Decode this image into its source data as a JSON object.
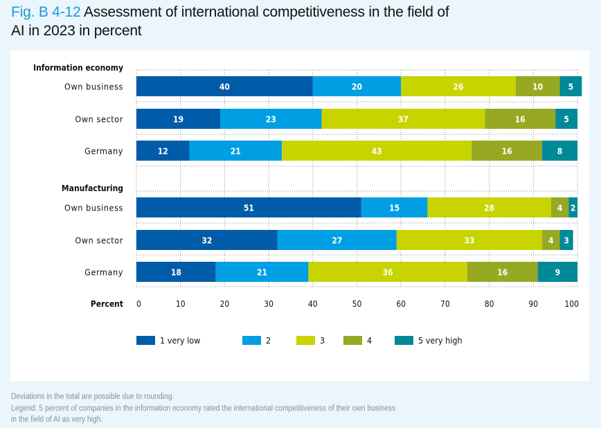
{
  "title": {
    "figure_label": "Fig. B 4-12",
    "line1": "Assessment of international competitiveness in the field of",
    "line2": "AI in 2023 in percent"
  },
  "notes": [
    "Deviations in the total are possible due to rounding.",
    "Legend: 5 percent of companies in the information economy rated the international competitiveness of their own business",
    "in the field of AI as very high."
  ],
  "colors": {
    "1 very low": "#005ba9",
    "2": "#009fe3",
    "3": "#c8d400",
    "4": "#97a823",
    "5 very high": "#008998",
    "background": "#eaf5fc",
    "panel": "#ffffff",
    "title_accent": "#1a9ad6"
  },
  "chart_data": {
    "type": "bar",
    "orientation": "horizontal",
    "stacked": true,
    "title": "Assessment of international competitiveness in the field of AI in 2023 in percent",
    "xlabel": "Percent",
    "ylabel": "",
    "xlim": [
      0,
      100
    ],
    "x_ticks": [
      0,
      10,
      20,
      30,
      40,
      50,
      60,
      70,
      80,
      90,
      100
    ],
    "grid": true,
    "legend_position": "bottom",
    "legend": [
      "1 very low",
      "2",
      "3",
      "4",
      "5 very high"
    ],
    "groups": [
      {
        "name": "Information economy",
        "categories": [
          "Own business",
          "Own sector",
          "Germany"
        ],
        "series": [
          {
            "name": "1 very low",
            "values": [
              40,
              19,
              12
            ]
          },
          {
            "name": "2",
            "values": [
              20,
              23,
              21
            ]
          },
          {
            "name": "3",
            "values": [
              26,
              37,
              43
            ]
          },
          {
            "name": "4",
            "values": [
              10,
              16,
              16
            ]
          },
          {
            "name": "5 very high",
            "values": [
              5,
              5,
              8
            ]
          }
        ]
      },
      {
        "name": "Manufacturing",
        "categories": [
          "Own business",
          "Own sector",
          "Germany"
        ],
        "series": [
          {
            "name": "1 very low",
            "values": [
              51,
              32,
              18
            ]
          },
          {
            "name": "2",
            "values": [
              15,
              27,
              21
            ]
          },
          {
            "name": "3",
            "values": [
              28,
              33,
              36
            ]
          },
          {
            "name": "4",
            "values": [
              4,
              4,
              16
            ]
          },
          {
            "name": "5 very high",
            "values": [
              2,
              3,
              9
            ]
          }
        ]
      }
    ]
  }
}
